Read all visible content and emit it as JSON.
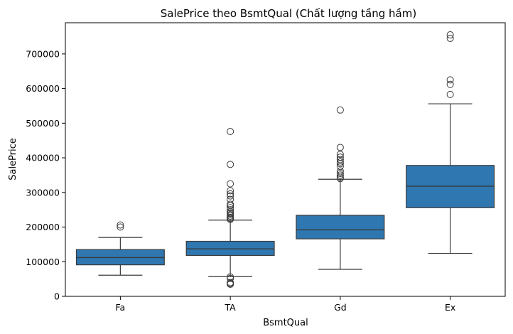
{
  "chart_data": {
    "type": "box",
    "title": "SalePrice theo BsmtQual (Chất lượng tầng hầm)",
    "xlabel": "BsmtQual",
    "ylabel": "SalePrice",
    "ylim": [
      0,
      790000
    ],
    "yticks": [
      0,
      100000,
      200000,
      300000,
      400000,
      500000,
      600000,
      700000
    ],
    "grid": false,
    "colors": {
      "box": "#2f77b1",
      "line": "#3a3a3a"
    },
    "categories": [
      "Fa",
      "TA",
      "Gd",
      "Ex"
    ],
    "boxes": [
      {
        "category": "Fa",
        "whisker_low": 61000,
        "q1": 91000,
        "median": 112000,
        "q3": 135000,
        "whisker_high": 170000,
        "outliers": [
          200000,
          206000
        ]
      },
      {
        "category": "TA",
        "whisker_low": 57000,
        "q1": 118000,
        "median": 137000,
        "q3": 159000,
        "whisker_high": 220000,
        "outliers": [
          35000,
          37000,
          40000,
          52000,
          56000,
          222000,
          225000,
          228000,
          232000,
          236000,
          240000,
          244000,
          250000,
          256000,
          262000,
          266000,
          280000,
          290000,
          296000,
          305000,
          325000,
          381000,
          476000
        ]
      },
      {
        "category": "Gd",
        "whisker_low": 78000,
        "q1": 166000,
        "median": 192000,
        "q3": 234000,
        "whisker_high": 338000,
        "outliers": [
          340000,
          344000,
          350000,
          355000,
          362000,
          375000,
          383000,
          388000,
          395000,
          402000,
          410000,
          430000,
          538000
        ]
      },
      {
        "category": "Ex",
        "whisker_low": 124000,
        "q1": 256000,
        "median": 318000,
        "q3": 378000,
        "whisker_high": 556000,
        "outliers": [
          583000,
          612000,
          625000,
          745000,
          755000
        ]
      }
    ]
  }
}
